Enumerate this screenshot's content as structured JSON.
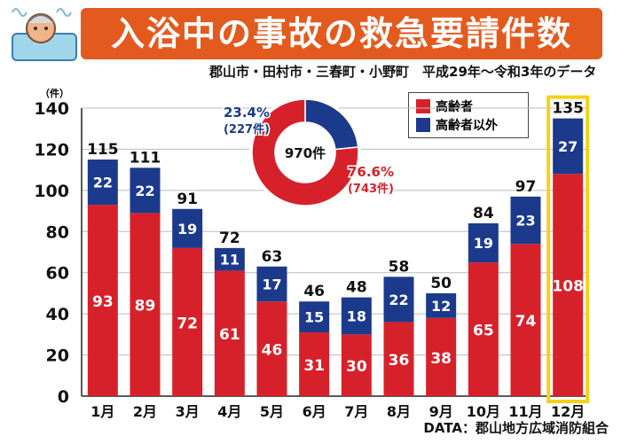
{
  "header": {
    "title": "入浴中の事故の救急要請件数",
    "subtitle": "郡山市・田村市・三春町・小野町　平成29年〜令和3年のデータ",
    "source": "DATA：郡山地方広域消防組合"
  },
  "colors": {
    "elderly": "#d7212a",
    "non_elderly": "#1c3a8c",
    "highlight": "#f2d21a",
    "title_bg": "#e35a1f"
  },
  "icon": "bathing-elder-icon",
  "chart_data": {
    "type": "bar",
    "stacked": true,
    "unit_label": "（件）",
    "categories": [
      "1月",
      "2月",
      "3月",
      "4月",
      "5月",
      "6月",
      "7月",
      "8月",
      "9月",
      "10月",
      "11月",
      "12月"
    ],
    "series": [
      {
        "name": "高齢者",
        "values": [
          93,
          89,
          72,
          61,
          46,
          31,
          30,
          36,
          38,
          65,
          74,
          108
        ]
      },
      {
        "name": "高齢者以外",
        "values": [
          22,
          22,
          19,
          11,
          17,
          15,
          18,
          22,
          12,
          19,
          23,
          27
        ]
      }
    ],
    "totals": [
      115,
      111,
      91,
      72,
      63,
      46,
      48,
      58,
      50,
      84,
      97,
      135
    ],
    "ylim": [
      0,
      140
    ],
    "yticks": [
      0,
      20,
      40,
      60,
      80,
      100,
      120,
      140
    ],
    "highlight_category": "12月",
    "donut": {
      "total_label": "970件",
      "slices": [
        {
          "name": "高齢者",
          "pct": 76.6,
          "pct_label": "76.6%",
          "count_label": "(743件)"
        },
        {
          "name": "高齢者以外",
          "pct": 23.4,
          "pct_label": "23.4%",
          "count_label": "(227件)"
        }
      ]
    }
  }
}
